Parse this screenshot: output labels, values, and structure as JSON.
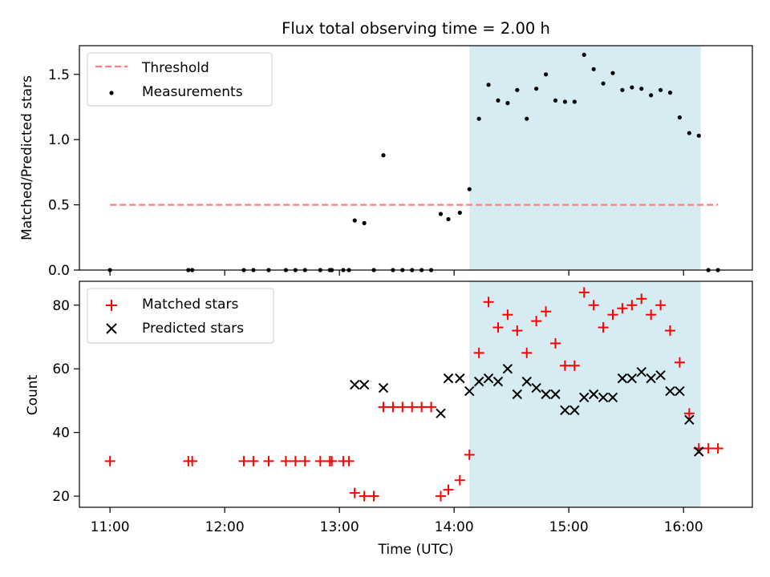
{
  "figure": {
    "title": "Flux total observing time = 2.00 h",
    "colors": {
      "threshold": "#ff7f7f",
      "measurement": "#000000",
      "matched": "#ff0000",
      "predicted": "#000000",
      "span": "#add8e6"
    }
  },
  "chart_data": [
    {
      "type": "scatter",
      "panel": "top",
      "title": "Flux total observing time = 2.00 h",
      "xlabel": "",
      "ylabel": "Matched/Predicted stars",
      "xlim": [
        "10:44",
        "16:36"
      ],
      "ylim": [
        0,
        1.72
      ],
      "yticks": [
        "0.0",
        "0.5",
        "1.0",
        "1.5"
      ],
      "legend_placement": "upper-left",
      "shaded_span": {
        "start": "14:08",
        "end": "16:09"
      },
      "threshold": {
        "name": "Threshold",
        "y": 0.5,
        "x_start": "11:00",
        "x_end": "16:18",
        "style": "dashed"
      },
      "series": [
        {
          "name": "Measurements",
          "marker": "dot",
          "points": [
            [
              "11:00",
              0
            ],
            [
              "11:41",
              0
            ],
            [
              "11:43",
              0
            ],
            [
              "12:10",
              0
            ],
            [
              "12:15",
              0
            ],
            [
              "12:23",
              0
            ],
            [
              "12:32",
              0
            ],
            [
              "12:37",
              0
            ],
            [
              "12:42",
              0
            ],
            [
              "12:50",
              0
            ],
            [
              "12:55",
              0
            ],
            [
              "12:56",
              0
            ],
            [
              "13:02",
              0
            ],
            [
              "13:05",
              0
            ],
            [
              "13:08",
              0.38
            ],
            [
              "13:13",
              0.36
            ],
            [
              "13:18",
              0
            ],
            [
              "13:23",
              0.88
            ],
            [
              "13:28",
              0
            ],
            [
              "13:33",
              0
            ],
            [
              "13:38",
              0
            ],
            [
              "13:43",
              0
            ],
            [
              "13:48",
              0
            ],
            [
              "13:53",
              0.43
            ],
            [
              "13:57",
              0.39
            ],
            [
              "14:03",
              0.44
            ],
            [
              "14:08",
              0.62
            ],
            [
              "14:13",
              1.16
            ],
            [
              "14:18",
              1.42
            ],
            [
              "14:23",
              1.3
            ],
            [
              "14:28",
              1.28
            ],
            [
              "14:33",
              1.38
            ],
            [
              "14:38",
              1.16
            ],
            [
              "14:43",
              1.39
            ],
            [
              "14:48",
              1.5
            ],
            [
              "14:53",
              1.3
            ],
            [
              "14:58",
              1.29
            ],
            [
              "15:03",
              1.29
            ],
            [
              "15:08",
              1.65
            ],
            [
              "15:13",
              1.54
            ],
            [
              "15:18",
              1.43
            ],
            [
              "15:23",
              1.51
            ],
            [
              "15:28",
              1.38
            ],
            [
              "15:33",
              1.4
            ],
            [
              "15:38",
              1.39
            ],
            [
              "15:43",
              1.34
            ],
            [
              "15:48",
              1.38
            ],
            [
              "15:53",
              1.36
            ],
            [
              "15:58",
              1.17
            ],
            [
              "16:03",
              1.05
            ],
            [
              "16:08",
              1.03
            ],
            [
              "16:13",
              0
            ],
            [
              "16:18",
              0
            ]
          ]
        }
      ]
    },
    {
      "type": "scatter",
      "panel": "bottom",
      "title": "",
      "xlabel": "Time (UTC)",
      "ylabel": "Count",
      "xlim": [
        "10:44",
        "16:36"
      ],
      "ylim": [
        16.5,
        87.5
      ],
      "xticks": [
        "11:00",
        "12:00",
        "13:00",
        "14:00",
        "15:00",
        "16:00"
      ],
      "yticks": [
        "20",
        "40",
        "60",
        "80"
      ],
      "legend_placement": "upper-left",
      "shaded_span": {
        "start": "14:08",
        "end": "16:09"
      },
      "series": [
        {
          "name": "Matched stars",
          "marker": "plus",
          "points": [
            [
              "11:00",
              31
            ],
            [
              "11:41",
              31
            ],
            [
              "11:43",
              31
            ],
            [
              "12:10",
              31
            ],
            [
              "12:15",
              31
            ],
            [
              "12:23",
              31
            ],
            [
              "12:32",
              31
            ],
            [
              "12:37",
              31
            ],
            [
              "12:42",
              31
            ],
            [
              "12:50",
              31
            ],
            [
              "12:55",
              31
            ],
            [
              "12:56",
              31
            ],
            [
              "13:02",
              31
            ],
            [
              "13:05",
              31
            ],
            [
              "13:08",
              21
            ],
            [
              "13:13",
              20
            ],
            [
              "13:18",
              20
            ],
            [
              "13:23",
              48
            ],
            [
              "13:28",
              48
            ],
            [
              "13:33",
              48
            ],
            [
              "13:38",
              48
            ],
            [
              "13:43",
              48
            ],
            [
              "13:48",
              48
            ],
            [
              "13:53",
              20
            ],
            [
              "13:57",
              22
            ],
            [
              "14:03",
              25
            ],
            [
              "14:08",
              33
            ],
            [
              "14:13",
              65
            ],
            [
              "14:18",
              81
            ],
            [
              "14:23",
              73
            ],
            [
              "14:28",
              77
            ],
            [
              "14:33",
              72
            ],
            [
              "14:38",
              65
            ],
            [
              "14:43",
              75
            ],
            [
              "14:48",
              78
            ],
            [
              "14:53",
              68
            ],
            [
              "14:58",
              61
            ],
            [
              "15:03",
              61
            ],
            [
              "15:08",
              84
            ],
            [
              "15:13",
              80
            ],
            [
              "15:18",
              73
            ],
            [
              "15:23",
              77
            ],
            [
              "15:28",
              79
            ],
            [
              "15:33",
              80
            ],
            [
              "15:38",
              82
            ],
            [
              "15:43",
              77
            ],
            [
              "15:48",
              80
            ],
            [
              "15:53",
              72
            ],
            [
              "15:58",
              62
            ],
            [
              "16:03",
              46
            ],
            [
              "16:08",
              35
            ],
            [
              "16:13",
              35
            ],
            [
              "16:18",
              35
            ]
          ]
        },
        {
          "name": "Predicted stars",
          "marker": "x",
          "points": [
            [
              "13:08",
              55
            ],
            [
              "13:13",
              55
            ],
            [
              "13:23",
              54
            ],
            [
              "13:53",
              46
            ],
            [
              "13:57",
              57
            ],
            [
              "14:03",
              57
            ],
            [
              "14:08",
              53
            ],
            [
              "14:13",
              56
            ],
            [
              "14:18",
              57
            ],
            [
              "14:23",
              56
            ],
            [
              "14:28",
              60
            ],
            [
              "14:33",
              52
            ],
            [
              "14:38",
              56
            ],
            [
              "14:43",
              54
            ],
            [
              "14:48",
              52
            ],
            [
              "14:53",
              52
            ],
            [
              "14:58",
              47
            ],
            [
              "15:03",
              47
            ],
            [
              "15:08",
              51
            ],
            [
              "15:13",
              52
            ],
            [
              "15:18",
              51
            ],
            [
              "15:23",
              51
            ],
            [
              "15:28",
              57
            ],
            [
              "15:33",
              57
            ],
            [
              "15:38",
              59
            ],
            [
              "15:43",
              57
            ],
            [
              "15:48",
              58
            ],
            [
              "15:53",
              53
            ],
            [
              "15:58",
              53
            ],
            [
              "16:03",
              44
            ],
            [
              "16:08",
              34
            ]
          ]
        }
      ]
    }
  ]
}
